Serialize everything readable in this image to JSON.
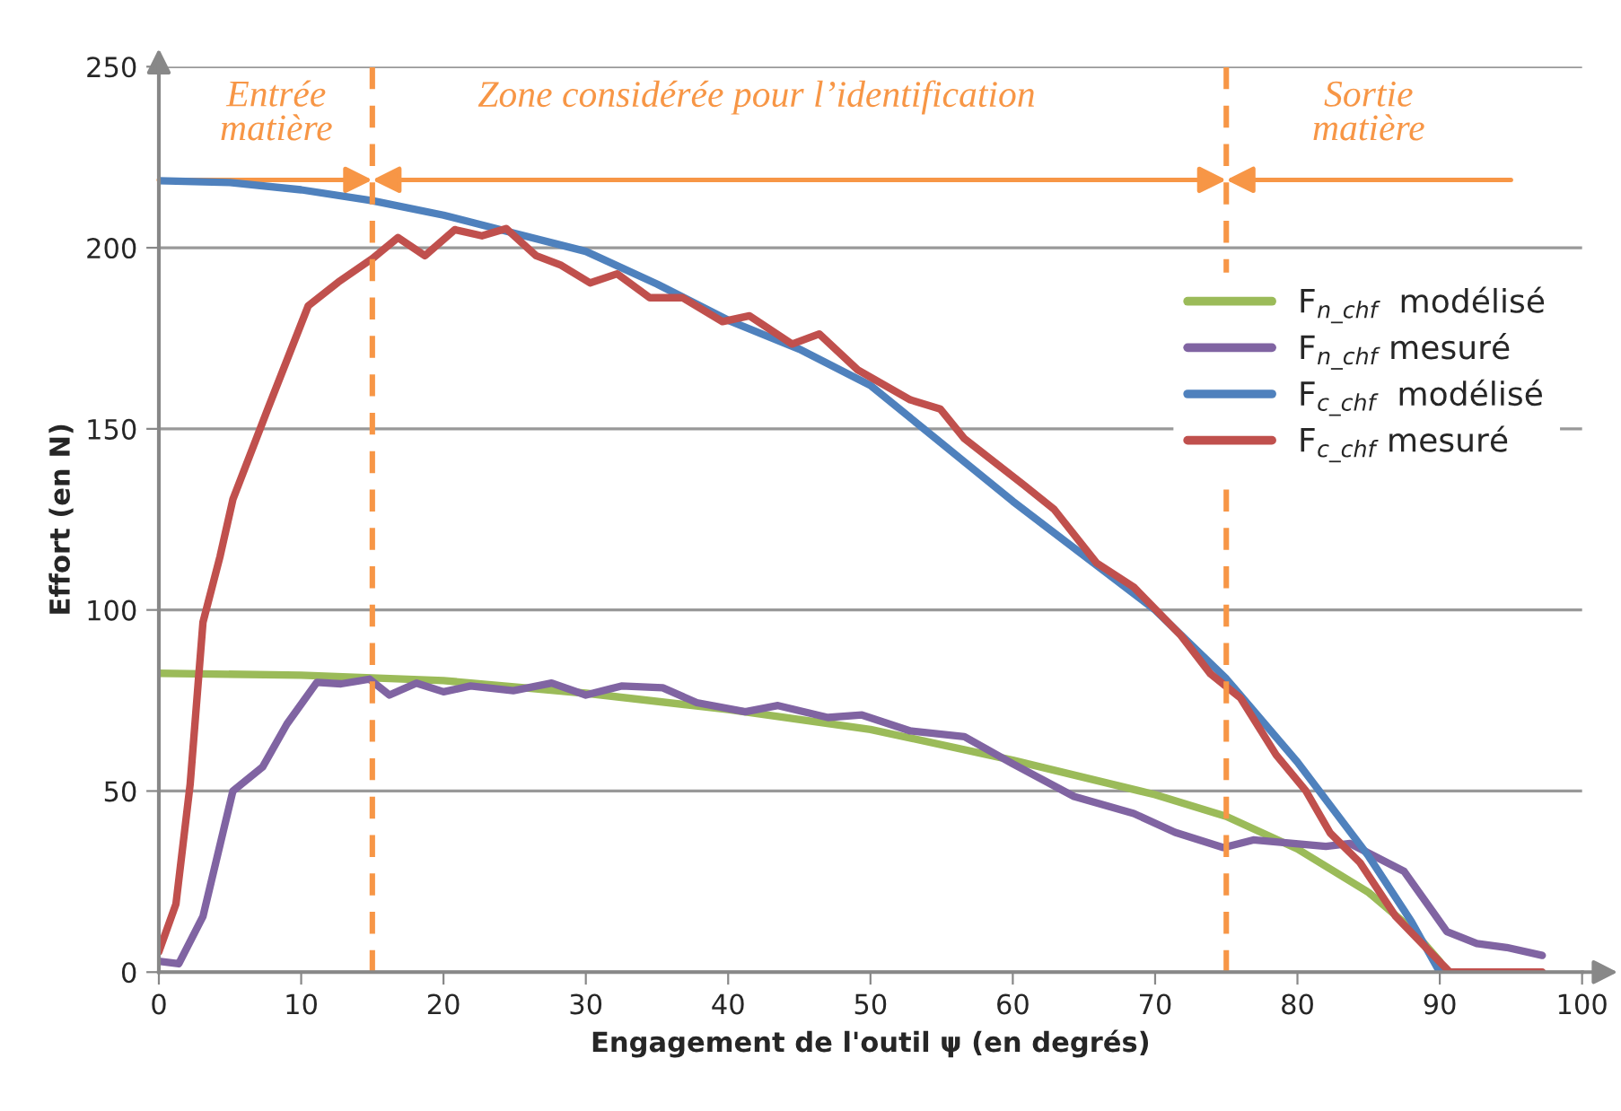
{
  "chart_data": {
    "type": "line",
    "xlabel": "Engagement de l'outil ψ (en degrés)",
    "ylabel": "Effort (en N)",
    "xlim": [
      0,
      100
    ],
    "xticks": [
      0,
      10,
      20,
      30,
      40,
      50,
      60,
      70,
      80,
      90,
      100
    ],
    "ylim": [
      0,
      250
    ],
    "yticks": [
      0,
      50,
      100,
      150,
      200,
      250
    ],
    "grid": "y",
    "legend": "right",
    "marker": "none",
    "line_style": "solid",
    "ref_lines": [
      {
        "axis": "x",
        "value": 15,
        "color": "#f79646",
        "line_style": "dashed"
      },
      {
        "axis": "x",
        "value": 75,
        "color": "#f79646",
        "line_style": "dashed"
      }
    ],
    "annotations": [
      "Entrée\nmatière",
      "Zone considérée pour l’identification",
      "Sortie\nmatière"
    ],
    "series": [
      {
        "name": "F$_{n_chf}$  modélisé",
        "color": "#9bbb59",
        "x": [
          0,
          10,
          20,
          30,
          40,
          50,
          60,
          70,
          75,
          80,
          85,
          88,
          90
        ],
        "values": [
          82.5,
          82,
          80.5,
          77,
          72.5,
          67,
          58.5,
          49,
          43,
          34,
          22,
          12,
          3
        ]
      },
      {
        "name": "F$_{n_chf}$ mesuré",
        "color": "#8064a2",
        "x": [
          0,
          1.4,
          3.1,
          5.2,
          7.3,
          9.0,
          11.1,
          12.8,
          14.8,
          16.2,
          18.1,
          20.0,
          21.9,
          24.9,
          27.6,
          30.0,
          32.5,
          35.4,
          37.8,
          41.2,
          43.5,
          47.0,
          49.4,
          52.8,
          56.6,
          60.0,
          64.3,
          68.5,
          71.4,
          74.8,
          76.9,
          82.0,
          83.7,
          87.5,
          90.5,
          92.6,
          94.7,
          97.2
        ],
        "values": [
          3,
          2.3,
          15.4,
          50,
          56.7,
          68.5,
          80,
          79.6,
          80.9,
          76.5,
          79.8,
          77.4,
          79,
          77.7,
          79.8,
          76.5,
          79,
          78.5,
          74.4,
          71.9,
          73.6,
          70.3,
          71,
          66.6,
          65,
          57.5,
          48.5,
          43.8,
          38.6,
          34.4,
          36.5,
          34.7,
          35.5,
          27.8,
          11.2,
          7.9,
          6.8,
          4.6
        ]
      },
      {
        "name": "F$_{c_chf}$  modélisé",
        "color": "#4f81bd",
        "x": [
          0,
          5,
          10,
          15,
          20,
          25,
          30,
          35,
          40,
          45,
          50,
          55,
          60,
          65,
          70,
          75,
          80,
          85,
          88,
          90
        ],
        "values": [
          218.5,
          218,
          216,
          213,
          209,
          204,
          199,
          190,
          180,
          172,
          162,
          146,
          130,
          115,
          100,
          81,
          58,
          32,
          14,
          0
        ]
      },
      {
        "name": "F$_{c_chf}$ mesuré",
        "color": "#c0504d",
        "x": [
          0,
          1.2,
          2.2,
          3.1,
          4.3,
          5.2,
          7.7,
          10.5,
          12.6,
          15.0,
          16.8,
          18.7,
          20.8,
          22.7,
          24.4,
          26.5,
          28.2,
          30.3,
          32.2,
          34.5,
          36.8,
          39.6,
          41.5,
          44.5,
          46.4,
          49.1,
          52.8,
          54.9,
          56.6,
          60.8,
          62.9,
          65.9,
          68.5,
          71.8,
          73.9,
          76.0,
          78.5,
          80.6,
          82.3,
          84.4,
          86.9,
          90.7,
          97.2
        ],
        "values": [
          5.6,
          18.8,
          51.9,
          96.6,
          114.8,
          130.5,
          156,
          184,
          190.5,
          197,
          202.8,
          197.8,
          205,
          203.3,
          205.3,
          197.8,
          195.3,
          190.3,
          192.8,
          186.2,
          186.2,
          179.6,
          181.2,
          173.4,
          176.2,
          166.3,
          158,
          155.5,
          147.3,
          134.4,
          127.8,
          112.9,
          106.3,
          93,
          82.3,
          75.7,
          60,
          50,
          38.4,
          30.2,
          15.4,
          0,
          0
        ]
      }
    ]
  }
}
